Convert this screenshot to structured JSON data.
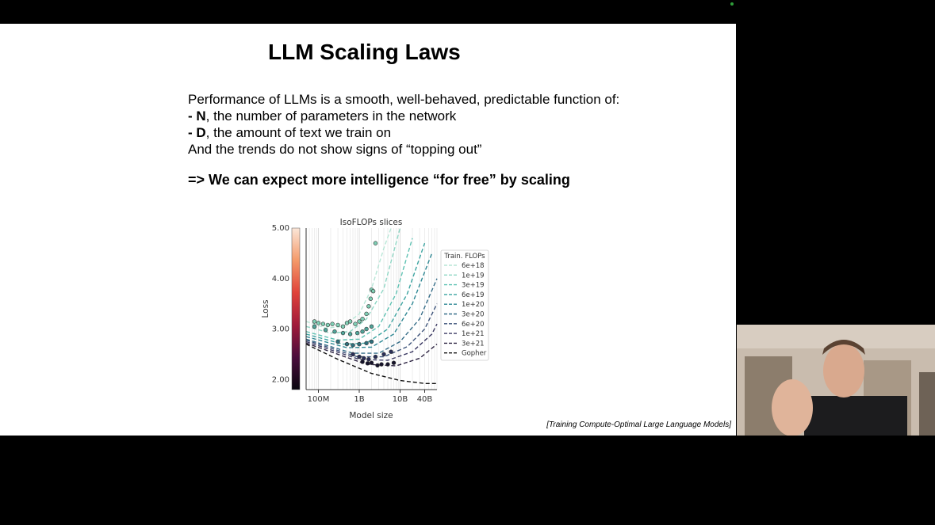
{
  "slide": {
    "title": "LLM Scaling Laws",
    "intro": "Performance of LLMs is a smooth, well-behaved, predictable function of:",
    "bullets": [
      {
        "dash": "- ",
        "term": "N",
        "rest": ", the number of parameters in the network"
      },
      {
        "dash": "- ",
        "term": "D",
        "rest": ", the amount of text we train on"
      }
    ],
    "trend": "And the trends do not show signs of “topping out”",
    "conclusion": "=> We can expect more intelligence “for free” by scaling",
    "citation": "[Training Compute-Optimal Large Language Models]"
  },
  "chart_data": {
    "type": "line",
    "title": "IsoFLOPs slices",
    "xlabel": "Model size",
    "ylabel": "Loss",
    "x_scale": "log",
    "xlim": [
      50000000,
      80000000000
    ],
    "ylim": [
      1.8,
      5.0
    ],
    "x_ticks": [
      {
        "value": 100000000,
        "label": "100M"
      },
      {
        "value": 1000000000,
        "label": "1B"
      },
      {
        "value": 10000000000,
        "label": "10B"
      },
      {
        "value": 40000000000,
        "label": "40B"
      }
    ],
    "y_ticks": [
      {
        "value": 2.0,
        "label": "2.00"
      },
      {
        "value": 3.0,
        "label": "3.00"
      },
      {
        "value": 4.0,
        "label": "4.00"
      },
      {
        "value": 5.0,
        "label": "5.00"
      }
    ],
    "grid": true,
    "legend_title": "Train. FLOPs",
    "legend_position": "right",
    "colorbar": true,
    "series": [
      {
        "name": "6e+18",
        "color": "#b7e6d6",
        "points": [
          [
            50000000,
            3.15
          ],
          [
            150000000,
            3.02
          ],
          [
            400000000,
            3.05
          ],
          [
            1000000000,
            3.3
          ],
          [
            2000000000,
            3.8
          ],
          [
            4000000000,
            4.6
          ],
          [
            6000000000,
            5.0
          ]
        ]
      },
      {
        "name": "1e+19",
        "color": "#8ed6c4",
        "points": [
          [
            50000000,
            3.05
          ],
          [
            200000000,
            2.92
          ],
          [
            600000000,
            2.95
          ],
          [
            1500000000,
            3.2
          ],
          [
            4000000000,
            3.8
          ],
          [
            10000000000,
            5.0
          ]
        ]
      },
      {
        "name": "3e+19",
        "color": "#5ec1b2",
        "points": [
          [
            50000000,
            2.95
          ],
          [
            300000000,
            2.78
          ],
          [
            1000000000,
            2.8
          ],
          [
            3000000000,
            3.05
          ],
          [
            8000000000,
            3.7
          ],
          [
            20000000000,
            4.8
          ]
        ]
      },
      {
        "name": "6e+19",
        "color": "#3aa3a0",
        "points": [
          [
            50000000,
            2.9
          ],
          [
            400000000,
            2.7
          ],
          [
            1500000000,
            2.72
          ],
          [
            5000000000,
            3.0
          ],
          [
            15000000000,
            3.7
          ],
          [
            40000000000,
            4.7
          ]
        ]
      },
      {
        "name": "1e+20",
        "color": "#2f8894",
        "points": [
          [
            50000000,
            2.85
          ],
          [
            500000000,
            2.63
          ],
          [
            2000000000,
            2.64
          ],
          [
            7000000000,
            2.9
          ],
          [
            20000000000,
            3.5
          ],
          [
            60000000000,
            4.5
          ]
        ]
      },
      {
        "name": "3e+20",
        "color": "#366d88",
        "points": [
          [
            50000000,
            2.8
          ],
          [
            700000000,
            2.52
          ],
          [
            3000000000,
            2.52
          ],
          [
            10000000000,
            2.75
          ],
          [
            30000000000,
            3.2
          ],
          [
            80000000000,
            4.0
          ]
        ]
      },
      {
        "name": "6e+20",
        "color": "#3d537a",
        "points": [
          [
            50000000,
            2.78
          ],
          [
            900000000,
            2.45
          ],
          [
            4000000000,
            2.45
          ],
          [
            15000000000,
            2.65
          ],
          [
            40000000000,
            3.0
          ],
          [
            80000000000,
            3.5
          ]
        ]
      },
      {
        "name": "1e+21",
        "color": "#3c3a63",
        "points": [
          [
            50000000,
            2.75
          ],
          [
            1000000000,
            2.4
          ],
          [
            5000000000,
            2.38
          ],
          [
            20000000000,
            2.55
          ],
          [
            60000000000,
            2.9
          ],
          [
            80000000000,
            3.1
          ]
        ]
      },
      {
        "name": "3e+21",
        "color": "#2b2240",
        "points": [
          [
            50000000,
            2.72
          ],
          [
            1500000000,
            2.3
          ],
          [
            8000000000,
            2.27
          ],
          [
            30000000000,
            2.42
          ],
          [
            80000000000,
            2.7
          ]
        ]
      },
      {
        "name": "Gopher",
        "color": "#111111",
        "points": [
          [
            50000000,
            2.7
          ],
          [
            300000000,
            2.4
          ],
          [
            2000000000,
            2.12
          ],
          [
            10000000000,
            1.98
          ],
          [
            40000000000,
            1.92
          ],
          [
            80000000000,
            1.92
          ]
        ]
      }
    ],
    "scatter": [
      {
        "color": "#7fcfb5",
        "points": [
          [
            80000000,
            3.15
          ],
          [
            100000000,
            3.12
          ],
          [
            130000000,
            3.1
          ],
          [
            170000000,
            3.08
          ],
          [
            220000000,
            3.1
          ],
          [
            300000000,
            3.08
          ],
          [
            400000000,
            3.05
          ],
          [
            500000000,
            3.12
          ],
          [
            600000000,
            3.15
          ],
          [
            800000000,
            3.1
          ],
          [
            1000000000,
            3.15
          ],
          [
            1200000000,
            3.2
          ],
          [
            1500000000,
            3.3
          ],
          [
            1700000000,
            3.45
          ],
          [
            1900000000,
            3.6
          ],
          [
            2000000000,
            3.78
          ],
          [
            2200000000,
            3.75
          ],
          [
            2500000000,
            4.7
          ]
        ]
      },
      {
        "color": "#4fa59a",
        "points": [
          [
            80000000,
            3.05
          ],
          [
            150000000,
            2.98
          ],
          [
            250000000,
            2.95
          ],
          [
            400000000,
            2.92
          ],
          [
            600000000,
            2.9
          ],
          [
            900000000,
            2.92
          ],
          [
            1200000000,
            2.95
          ],
          [
            1500000000,
            3.0
          ],
          [
            2000000000,
            3.05
          ]
        ]
      },
      {
        "color": "#2d6f7c",
        "points": [
          [
            300000000,
            2.75
          ],
          [
            500000000,
            2.7
          ],
          [
            700000000,
            2.68
          ],
          [
            1000000000,
            2.7
          ],
          [
            1500000000,
            2.72
          ],
          [
            2000000000,
            2.75
          ]
        ]
      },
      {
        "color": "#2a2e58",
        "points": [
          [
            700000000,
            2.5
          ],
          [
            1000000000,
            2.45
          ],
          [
            1300000000,
            2.42
          ],
          [
            1700000000,
            2.4
          ],
          [
            2500000000,
            2.45
          ],
          [
            4000000000,
            2.5
          ],
          [
            6000000000,
            2.55
          ]
        ]
      },
      {
        "color": "#15122a",
        "points": [
          [
            1200000000,
            2.35
          ],
          [
            1600000000,
            2.32
          ],
          [
            2000000000,
            2.33
          ],
          [
            2800000000,
            2.28
          ],
          [
            3500000000,
            2.3
          ],
          [
            5000000000,
            2.3
          ],
          [
            7000000000,
            2.33
          ]
        ]
      }
    ],
    "colorbar_colors": [
      "#0a0710",
      "#4a0d3c",
      "#a01a3a",
      "#e0423a",
      "#f49a6a",
      "#fbe6d8"
    ]
  }
}
